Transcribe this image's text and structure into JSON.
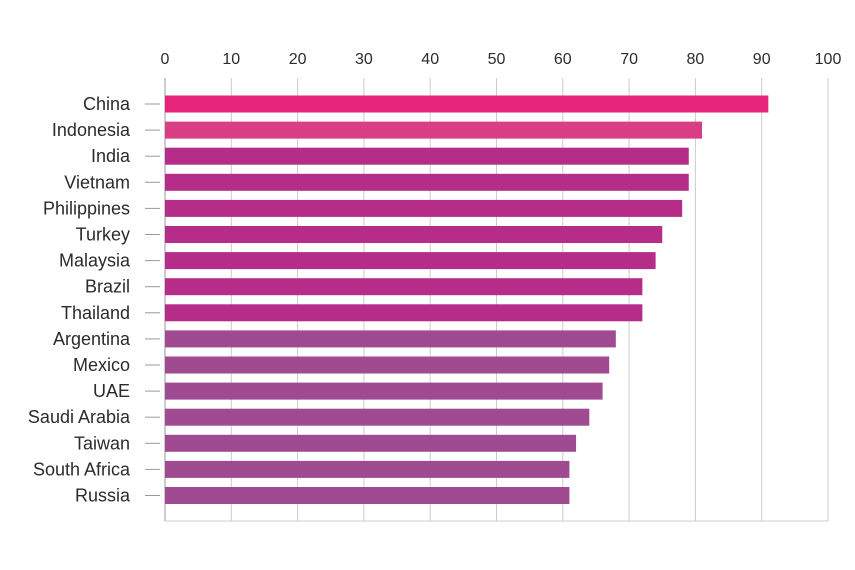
{
  "chart_data": {
    "type": "bar",
    "orientation": "horizontal",
    "title": "",
    "xlabel": "",
    "ylabel": "",
    "xlim": [
      0,
      100
    ],
    "x_ticks": [
      "0",
      "10",
      "20",
      "30",
      "40",
      "50",
      "60",
      "70",
      "80",
      "90",
      "100"
    ],
    "x_axis_position": "top",
    "grid": true,
    "legend": "none",
    "categories": [
      "China",
      "Indonesia",
      "India",
      "Vietnam",
      "Philippines",
      "Turkey",
      "Malaysia",
      "Brazil",
      "Thailand",
      "Argentina",
      "Mexico",
      "UAE",
      "Saudi Arabia",
      "Taiwan",
      "South Africa",
      "Russia"
    ],
    "values": [
      91,
      81,
      79,
      79,
      78,
      75,
      74,
      72,
      72,
      68,
      67,
      66,
      64,
      62,
      61,
      61
    ],
    "bar_colors": [
      "#e6247a",
      "#d93d84",
      "#b52d89",
      "#b52d89",
      "#b52d89",
      "#b52d89",
      "#b52d89",
      "#b52d89",
      "#b52d89",
      "#a04b91",
      "#a04b91",
      "#a04b91",
      "#a04b91",
      "#a04b91",
      "#a04b91",
      "#a04b91"
    ],
    "gridline_color": "#cccccc",
    "axis_color": "#999999"
  }
}
